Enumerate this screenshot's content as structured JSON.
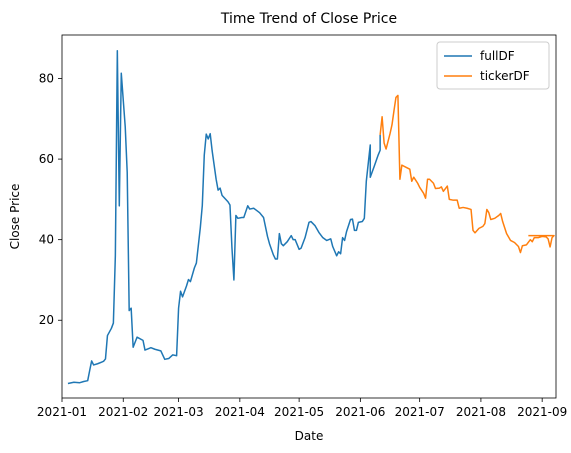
{
  "chart_data": {
    "type": "line",
    "title": "Time Trend of Close Price",
    "xlabel": "Date",
    "ylabel": "Close Price",
    "x_ticks": [
      "2021-01",
      "2021-02",
      "2021-03",
      "2021-04",
      "2021-05",
      "2021-06",
      "2021-07",
      "2021-08",
      "2021-09"
    ],
    "y_ticks": [
      20,
      40,
      60,
      80
    ],
    "xlim": [
      "2021-01-01",
      "2021-09-08"
    ],
    "ylim": [
      0.7,
      90.8
    ],
    "grid": false,
    "legend_placement": "top-right",
    "series": [
      {
        "name": "fullDF",
        "color": "#1f77b4",
        "points": [
          [
            "2021-01-04",
            4.3
          ],
          [
            "2021-01-07",
            4.6
          ],
          [
            "2021-01-10",
            4.5
          ],
          [
            "2021-01-12",
            4.8
          ],
          [
            "2021-01-14",
            5.0
          ],
          [
            "2021-01-15",
            7.5
          ],
          [
            "2021-01-16",
            9.9
          ],
          [
            "2021-01-17",
            8.9
          ],
          [
            "2021-01-19",
            9.2
          ],
          [
            "2021-01-21",
            9.6
          ],
          [
            "2021-01-22",
            9.8
          ],
          [
            "2021-01-23",
            10.4
          ],
          [
            "2021-01-24",
            16.2
          ],
          [
            "2021-01-26",
            18.0
          ],
          [
            "2021-01-27",
            19.3
          ],
          [
            "2021-01-28",
            36.0
          ],
          [
            "2021-01-29",
            86.9
          ],
          [
            "2021-01-30",
            48.4
          ],
          [
            "2021-01-31",
            81.3
          ],
          [
            "2021-02-02",
            68.0
          ],
          [
            "2021-02-03",
            56.7
          ],
          [
            "2021-02-04",
            22.4
          ],
          [
            "2021-02-05",
            23.0
          ],
          [
            "2021-02-06",
            13.3
          ],
          [
            "2021-02-08",
            15.8
          ],
          [
            "2021-02-11",
            15.0
          ],
          [
            "2021-02-12",
            12.6
          ],
          [
            "2021-02-15",
            13.2
          ],
          [
            "2021-02-17",
            12.8
          ],
          [
            "2021-02-20",
            12.4
          ],
          [
            "2021-02-22",
            10.3
          ],
          [
            "2021-02-24",
            10.5
          ],
          [
            "2021-02-26",
            11.4
          ],
          [
            "2021-02-28",
            11.2
          ],
          [
            "2021-03-01",
            23.0
          ],
          [
            "2021-03-02",
            27.2
          ],
          [
            "2021-03-03",
            25.8
          ],
          [
            "2021-03-05",
            28.5
          ],
          [
            "2021-03-06",
            30.1
          ],
          [
            "2021-03-07",
            29.6
          ],
          [
            "2021-03-09",
            33.0
          ],
          [
            "2021-03-10",
            34.2
          ],
          [
            "2021-03-12",
            43.0
          ],
          [
            "2021-03-13",
            48.5
          ],
          [
            "2021-03-14",
            61.0
          ],
          [
            "2021-03-15",
            66.2
          ],
          [
            "2021-03-16",
            65.0
          ],
          [
            "2021-03-17",
            66.3
          ],
          [
            "2021-03-18",
            62.0
          ],
          [
            "2021-03-20",
            55.0
          ],
          [
            "2021-03-21",
            52.3
          ],
          [
            "2021-03-22",
            52.8
          ],
          [
            "2021-03-23",
            51.0
          ],
          [
            "2021-03-26",
            49.4
          ],
          [
            "2021-03-27",
            48.6
          ],
          [
            "2021-03-28",
            38.0
          ],
          [
            "2021-03-29",
            30.0
          ],
          [
            "2021-03-30",
            46.0
          ],
          [
            "2021-03-31",
            45.3
          ],
          [
            "2021-04-02",
            45.5
          ],
          [
            "2021-04-03",
            45.5
          ],
          [
            "2021-04-05",
            48.4
          ],
          [
            "2021-04-06",
            47.6
          ],
          [
            "2021-04-08",
            47.8
          ],
          [
            "2021-04-11",
            46.7
          ],
          [
            "2021-04-13",
            45.5
          ],
          [
            "2021-04-15",
            40.8
          ],
          [
            "2021-04-16",
            39.0
          ],
          [
            "2021-04-18",
            36.2
          ],
          [
            "2021-04-19",
            35.2
          ],
          [
            "2021-04-20",
            35.2
          ],
          [
            "2021-04-21",
            41.5
          ],
          [
            "2021-04-22",
            39.0
          ],
          [
            "2021-04-23",
            38.5
          ],
          [
            "2021-04-25",
            39.5
          ],
          [
            "2021-04-27",
            41.0
          ],
          [
            "2021-04-28",
            40.0
          ],
          [
            "2021-04-29",
            40.0
          ],
          [
            "2021-05-01",
            37.6
          ],
          [
            "2021-05-02",
            37.9
          ],
          [
            "2021-05-04",
            40.5
          ],
          [
            "2021-05-06",
            44.3
          ],
          [
            "2021-05-07",
            44.5
          ],
          [
            "2021-05-09",
            43.5
          ],
          [
            "2021-05-11",
            41.8
          ],
          [
            "2021-05-13",
            40.5
          ],
          [
            "2021-05-15",
            39.8
          ],
          [
            "2021-05-17",
            40.2
          ],
          [
            "2021-05-18",
            38.3
          ],
          [
            "2021-05-20",
            36.0
          ],
          [
            "2021-05-21",
            37.0
          ],
          [
            "2021-05-22",
            36.5
          ],
          [
            "2021-05-23",
            40.5
          ],
          [
            "2021-05-24",
            39.8
          ],
          [
            "2021-05-25",
            42.0
          ],
          [
            "2021-05-27",
            45.0
          ],
          [
            "2021-05-28",
            45.1
          ],
          [
            "2021-05-29",
            42.3
          ],
          [
            "2021-05-30",
            42.3
          ],
          [
            "2021-05-31",
            44.3
          ],
          [
            "2021-06-02",
            44.5
          ],
          [
            "2021-06-03",
            45.3
          ],
          [
            "2021-06-04",
            54.5
          ],
          [
            "2021-06-06",
            63.5
          ],
          [
            "2021-06-06",
            55.5
          ],
          [
            "2021-06-08",
            58.2
          ],
          [
            "2021-06-10",
            61.0
          ],
          [
            "2021-06-11",
            62.2
          ],
          [
            "2021-06-11",
            66.0
          ]
        ]
      },
      {
        "name": "tickerDF",
        "color": "#ff7f0e",
        "points": [
          [
            "2021-06-11",
            66.0
          ],
          [
            "2021-06-12",
            70.5
          ],
          [
            "2021-06-13",
            64.0
          ],
          [
            "2021-06-14",
            62.5
          ],
          [
            "2021-06-16",
            66.3
          ],
          [
            "2021-06-17",
            68.5
          ],
          [
            "2021-06-18",
            72.0
          ],
          [
            "2021-06-19",
            75.3
          ],
          [
            "2021-06-20",
            75.8
          ],
          [
            "2021-06-21",
            55.0
          ],
          [
            "2021-06-22",
            58.5
          ],
          [
            "2021-06-24",
            58.0
          ],
          [
            "2021-06-26",
            57.5
          ],
          [
            "2021-06-27",
            54.5
          ],
          [
            "2021-06-28",
            55.5
          ],
          [
            "2021-06-30",
            54.0
          ],
          [
            "2021-07-01",
            53.0
          ],
          [
            "2021-07-03",
            51.5
          ],
          [
            "2021-07-04",
            50.3
          ],
          [
            "2021-07-05",
            55.0
          ],
          [
            "2021-07-06",
            55.0
          ],
          [
            "2021-07-08",
            54.0
          ],
          [
            "2021-07-09",
            52.7
          ],
          [
            "2021-07-11",
            52.8
          ],
          [
            "2021-07-12",
            53.1
          ],
          [
            "2021-07-13",
            52.0
          ],
          [
            "2021-07-15",
            53.3
          ],
          [
            "2021-07-16",
            50.0
          ],
          [
            "2021-07-18",
            49.8
          ],
          [
            "2021-07-20",
            49.8
          ],
          [
            "2021-07-21",
            47.8
          ],
          [
            "2021-07-23",
            48.0
          ],
          [
            "2021-07-25",
            47.8
          ],
          [
            "2021-07-27",
            47.5
          ],
          [
            "2021-07-28",
            42.3
          ],
          [
            "2021-07-29",
            41.7
          ],
          [
            "2021-07-31",
            42.8
          ],
          [
            "2021-08-02",
            43.3
          ],
          [
            "2021-08-03",
            44.0
          ],
          [
            "2021-08-04",
            47.5
          ],
          [
            "2021-08-05",
            46.7
          ],
          [
            "2021-08-06",
            45.0
          ],
          [
            "2021-08-08",
            45.3
          ],
          [
            "2021-08-10",
            46.0
          ],
          [
            "2021-08-11",
            46.5
          ],
          [
            "2021-08-12",
            44.5
          ],
          [
            "2021-08-14",
            41.5
          ],
          [
            "2021-08-16",
            39.8
          ],
          [
            "2021-08-18",
            39.3
          ],
          [
            "2021-08-20",
            38.3
          ],
          [
            "2021-08-21",
            36.8
          ],
          [
            "2021-08-22",
            38.5
          ],
          [
            "2021-08-24",
            38.7
          ],
          [
            "2021-08-26",
            40.0
          ],
          [
            "2021-08-27",
            39.5
          ],
          [
            "2021-08-28",
            40.5
          ],
          [
            "2021-08-30",
            40.5
          ],
          [
            "2021-09-01",
            40.8
          ],
          [
            "2021-09-03",
            40.7
          ],
          [
            "2021-09-04",
            40.2
          ],
          [
            "2021-09-05",
            38.2
          ],
          [
            "2021-09-06",
            40.5
          ],
          [
            "2021-09-07",
            41.0
          ],
          [
            "2021-08-25",
            41.0
          ]
        ]
      }
    ]
  }
}
